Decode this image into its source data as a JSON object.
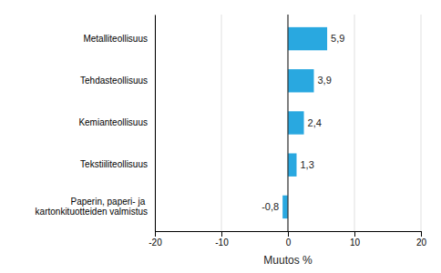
{
  "chart_data": {
    "type": "bar",
    "orientation": "horizontal",
    "categories": [
      "Paperin, paperi- ja kartonkituotteiden valmistus",
      "Tekstiiliteollisuus",
      "Kemianteollisuus",
      "Tehdasteollisuus",
      "Metalliteollisuus"
    ],
    "values": [
      -0.8,
      1.3,
      2.4,
      3.9,
      5.9
    ],
    "value_labels": [
      "-0,8",
      "1,3",
      "2,4",
      "3,9",
      "5,9"
    ],
    "data_labels": true,
    "color": "#29a8e0",
    "xlim": [
      -20,
      20
    ],
    "xticks": [
      -20,
      -10,
      0,
      10,
      20
    ],
    "xlabel": "Muutos %",
    "grid": true
  }
}
